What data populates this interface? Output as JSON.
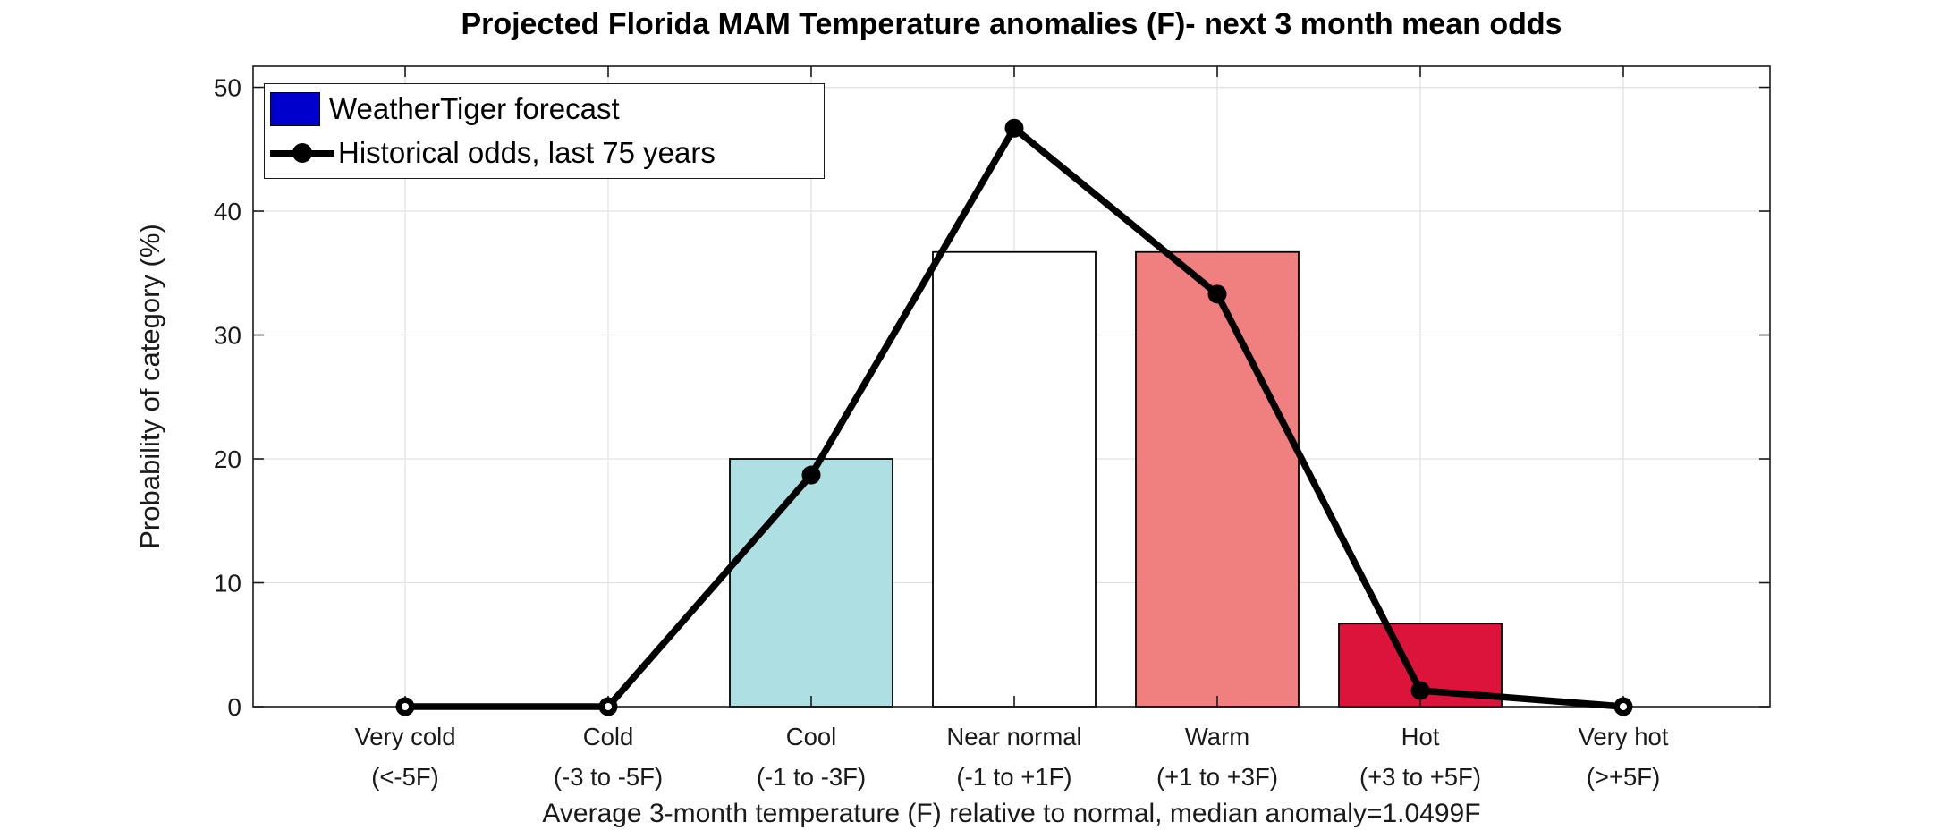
{
  "title": "Projected Florida MAM Temperature anomalies (F)- next 3 month mean odds",
  "chart_data": {
    "type": "bar+line",
    "title": "Projected Florida MAM Temperature anomalies (F)- next 3 month mean odds",
    "xlabel": "Average 3-month temperature (F) relative to normal, median anomaly=1.0499F",
    "ylabel": "Probability of category (%)",
    "ylim": [
      0,
      51.7
    ],
    "yticks": [
      0,
      10,
      20,
      30,
      40,
      50
    ],
    "grid": "both",
    "legend_position": "top-left-inside",
    "categories": [
      {
        "name": "Very cold",
        "range": "(<-5F)"
      },
      {
        "name": "Cold",
        "range": "(-3 to -5F)"
      },
      {
        "name": "Cool",
        "range": "(-1 to -3F)"
      },
      {
        "name": "Near normal",
        "range": "(-1 to +1F)"
      },
      {
        "name": "Warm",
        "range": "(+1 to +3F)"
      },
      {
        "name": "Hot",
        "range": "(+3 to +5F)"
      },
      {
        "name": "Very hot",
        "range": "(>+5F)"
      }
    ],
    "series": [
      {
        "name": "WeatherTiger forecast",
        "type": "bar",
        "values": [
          0,
          0,
          20,
          36.7,
          36.7,
          6.7,
          0
        ],
        "bar_colors": [
          "none",
          "none",
          "#AEDFE3",
          "#FFFFFF",
          "#F08080",
          "#DC143C",
          "none"
        ],
        "legend_swatch_color": "#0000CD"
      },
      {
        "name": "Historical odds, last 75 years",
        "type": "line",
        "values": [
          0,
          0,
          18.7,
          46.7,
          33.3,
          1.3,
          0
        ],
        "color": "#000000",
        "marker": "filled-circle"
      }
    ]
  },
  "colors": {
    "grid": "#E2E2E2",
    "axis": "#1a1a1a",
    "bar_edge": "#000000",
    "line": "#000000",
    "legend_blue": "#0000CD"
  }
}
